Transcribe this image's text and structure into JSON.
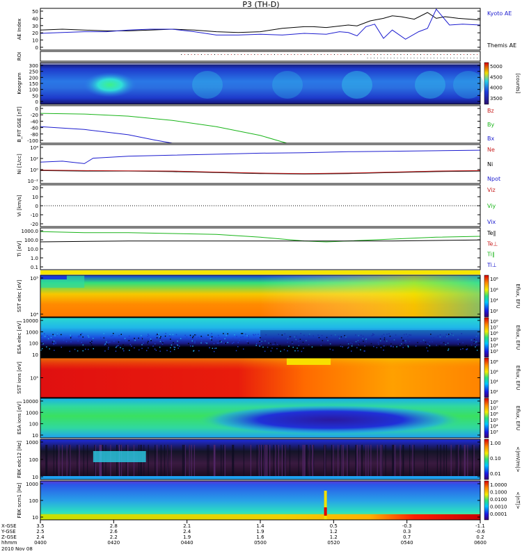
{
  "title": "P3 (TH-D)",
  "footer": {
    "date": "2010 Nov 08"
  },
  "chart_data": [
    {
      "id": "ae",
      "type": "line",
      "ylabel": "AE Index",
      "yticks": [
        "50",
        "40",
        "30",
        "20",
        "10",
        "0"
      ],
      "legend": [
        {
          "name": "Kyoto AE",
          "color": "#1b1bcf"
        },
        {
          "name": "Themis AE",
          "color": "#000000"
        }
      ],
      "series": [
        {
          "name": "Themis AE",
          "color": "#000000",
          "x": [
            0,
            0.05,
            0.1,
            0.15,
            0.2,
            0.25,
            0.3,
            0.35,
            0.4,
            0.45,
            0.5,
            0.55,
            0.6,
            0.62,
            0.65,
            0.7,
            0.72,
            0.75,
            0.78,
            0.8,
            0.82,
            0.85,
            0.88,
            0.9,
            0.92,
            0.95,
            1
          ],
          "y": [
            24,
            25,
            24,
            23,
            23,
            24,
            25,
            24,
            22,
            21,
            22,
            26,
            28,
            28,
            27,
            30,
            29,
            35,
            38,
            41,
            40,
            37,
            45,
            38,
            40,
            38,
            36
          ]
        },
        {
          "name": "Kyoto AE",
          "color": "#1b1bcf",
          "x": [
            0,
            0.05,
            0.1,
            0.15,
            0.2,
            0.25,
            0.3,
            0.35,
            0.4,
            0.45,
            0.5,
            0.55,
            0.6,
            0.65,
            0.68,
            0.7,
            0.72,
            0.74,
            0.76,
            0.78,
            0.8,
            0.83,
            0.86,
            0.88,
            0.9,
            0.93,
            0.96,
            1
          ],
          "y": [
            20,
            21,
            22,
            22,
            24,
            25,
            25,
            22,
            18,
            18,
            19,
            18,
            20,
            19,
            22,
            21,
            17,
            28,
            31,
            14,
            24,
            13,
            22,
            26,
            49,
            30,
            31,
            30
          ]
        }
      ]
    },
    {
      "id": "roi",
      "type": "table",
      "ylabel": "ROI"
    },
    {
      "id": "keogram",
      "type": "heatmap",
      "ylabel": "Keogram",
      "yticks": [
        "300",
        "250",
        "200",
        "150",
        "100",
        "50",
        "0"
      ],
      "colorbar": {
        "label": "[counts]",
        "ticks": [
          "5000",
          "4500",
          "4000",
          "3500"
        ]
      }
    },
    {
      "id": "bfield",
      "type": "line",
      "ylabel": "B_FIT GSE [nT]",
      "yticks": [
        "0",
        "-20",
        "-40",
        "-60",
        "-80",
        "-100"
      ],
      "legend": [
        {
          "name": "Bz",
          "color": "#c81e1e"
        },
        {
          "name": "By",
          "color": "#18b418"
        },
        {
          "name": "Bx",
          "color": "#1b1bcf"
        }
      ],
      "series": [
        {
          "name": "By",
          "color": "#18b418",
          "x": [
            0,
            0.1,
            0.2,
            0.3,
            0.4,
            0.5,
            0.56
          ],
          "y": [
            -22,
            -24,
            -30,
            -42,
            -60,
            -85,
            -107
          ]
        },
        {
          "name": "Bx",
          "color": "#1b1bcf",
          "x": [
            0,
            0.1,
            0.2,
            0.26,
            0.3
          ],
          "y": [
            -60,
            -68,
            -83,
            -98,
            -107
          ]
        }
      ]
    },
    {
      "id": "density",
      "type": "line",
      "ylabel": "Ni [1/cc]",
      "yticks": [
        "10⁴",
        "10²",
        "10⁰",
        "10⁻²"
      ],
      "legend": [
        {
          "name": "Ne",
          "color": "#c81e1e"
        },
        {
          "name": "Ni",
          "color": "#000000"
        },
        {
          "name": "Npot",
          "color": "#1b1bcf"
        }
      ],
      "series": [
        {
          "name": "Npot",
          "color": "#1b1bcf",
          "x": [
            0,
            0.05,
            0.1,
            0.12,
            0.2,
            0.3,
            0.4,
            0.5,
            0.6,
            0.7,
            0.8,
            0.9,
            1
          ],
          "y": [
            1.8,
            2.0,
            1.5,
            2.6,
            3.0,
            3.2,
            3.4,
            3.6,
            3.7,
            3.9,
            4.0,
            4.1,
            4.2
          ]
        },
        {
          "name": "Ni",
          "color": "#000000",
          "x": [
            0,
            0.1,
            0.2,
            0.3,
            0.4,
            0.5,
            0.6,
            0.7,
            0.8,
            0.9,
            1
          ],
          "y": [
            0.1,
            0.0,
            0.0,
            -0.1,
            -0.3,
            -0.5,
            -0.6,
            -0.5,
            -0.3,
            -0.1,
            0.0
          ]
        },
        {
          "name": "Ne",
          "color": "#c81e1e",
          "x": [
            0,
            0.1,
            0.2,
            0.3,
            0.4,
            0.5,
            0.6,
            0.7,
            0.8,
            0.9,
            1
          ],
          "y": [
            0.2,
            0.1,
            0.05,
            0.0,
            -0.2,
            -0.4,
            -0.5,
            -0.4,
            -0.2,
            0.0,
            0.1
          ]
        }
      ]
    },
    {
      "id": "velocity",
      "type": "line",
      "ylabel": "Vi [km/s]",
      "yticks": [
        "20",
        "10",
        "0",
        "-10",
        "-20"
      ],
      "legend": [
        {
          "name": "Viz",
          "color": "#c81e1e"
        },
        {
          "name": "Viy",
          "color": "#18b418"
        },
        {
          "name": "Vix",
          "color": "#1b1bcf"
        }
      ]
    },
    {
      "id": "temperature",
      "type": "line",
      "ylabel": "Ti [eV]",
      "yticks": [
        "1000.0",
        "100.0",
        "10.0",
        "1.0",
        "0.1"
      ],
      "legend": [
        {
          "name": "Te∥",
          "color": "#000000"
        },
        {
          "name": "Te⊥",
          "color": "#c81e1e"
        },
        {
          "name": "Ti∥",
          "color": "#18b418"
        },
        {
          "name": "Ti⊥",
          "color": "#1b1bcf"
        }
      ],
      "series": [
        {
          "name": "Ti∥",
          "color": "#18b418",
          "x": [
            0,
            0.1,
            0.2,
            0.3,
            0.4,
            0.5,
            0.55,
            0.6,
            0.65,
            0.7,
            0.8,
            0.9,
            1
          ],
          "y": [
            3.1,
            3.0,
            3.0,
            2.9,
            2.8,
            2.5,
            2.3,
            2.1,
            2.0,
            2.1,
            2.3,
            2.5,
            2.6
          ]
        },
        {
          "name": "Te∥",
          "color": "#000000",
          "x": [
            0,
            0.2,
            0.4,
            0.6,
            0.8,
            1
          ],
          "y": [
            2.0,
            2.1,
            2.1,
            2.1,
            2.1,
            2.2
          ]
        }
      ]
    },
    {
      "id": "sst_e",
      "type": "heatmap",
      "ylabel": "SST elec [eV]",
      "yticks": [
        "10⁵",
        "10⁴"
      ],
      "colorbar": {
        "label": "Eflux, EFU",
        "ticks": [
          "10⁸",
          "10⁶",
          "10⁴",
          "10²"
        ]
      }
    },
    {
      "id": "esa_e",
      "type": "heatmap",
      "ylabel": "ESA elec [eV]",
      "yticks": [
        "10000",
        "1000",
        "100",
        "10"
      ],
      "colorbar": {
        "label": "Eflux, EFU",
        "ticks": [
          "10⁸",
          "10⁷",
          "10⁶",
          "10⁵",
          "10⁴",
          "10³"
        ]
      }
    },
    {
      "id": "sst_i",
      "type": "heatmap",
      "ylabel": "SST ions [eV]",
      "yticks": [
        "10⁵"
      ],
      "colorbar": {
        "label": "Eflux, EFU",
        "ticks": [
          "10⁸",
          "10⁶",
          "10⁴",
          "10²"
        ]
      }
    },
    {
      "id": "esa_i",
      "type": "heatmap",
      "ylabel": "ESA ions [eV]",
      "yticks": [
        "10000",
        "1000",
        "100",
        "10"
      ],
      "colorbar": {
        "label": "Eflux, EFU",
        "ticks": [
          "10⁸",
          "10⁷",
          "10⁶",
          "10⁵",
          "10⁴",
          "10³"
        ]
      }
    },
    {
      "id": "fbk_e",
      "type": "heatmap",
      "ylabel": "FBK edc12 [Hz]",
      "yticks": [
        "1000",
        "100",
        "10"
      ],
      "colorbar": {
        "label": "<|mV/m|>",
        "ticks": [
          "1.00",
          "0.10",
          "0.01"
        ]
      }
    },
    {
      "id": "fbk_b",
      "type": "heatmap",
      "ylabel": "FBK scm1 [Hz]",
      "yticks": [
        "1000",
        "100",
        "10"
      ],
      "colorbar": {
        "label": "<|nT|>",
        "ticks": [
          "1.0000",
          "0.1000",
          "0.0100",
          "0.0010",
          "0.0001"
        ]
      }
    }
  ],
  "xaxis": {
    "row_labels": [
      "X-GSE",
      "Y-GSE",
      "Z-GSE",
      "hhmm"
    ],
    "ticks": [
      {
        "x": "3.5",
        "y": "2.5",
        "z": "2.4",
        "t": "0400"
      },
      {
        "x": "2.8",
        "y": "2.6",
        "z": "2.2",
        "t": "0420"
      },
      {
        "x": "2.1",
        "y": "2.4",
        "z": "1.9",
        "t": "0440"
      },
      {
        "x": "1.4",
        "y": "1.9",
        "z": "1.6",
        "t": "0500"
      },
      {
        "x": "0.5",
        "y": "1.2",
        "z": "1.2",
        "t": "0520"
      },
      {
        "x": "-0.3",
        "y": "0.3",
        "z": "0.7",
        "t": "0540"
      },
      {
        "x": "-1.1",
        "y": "-0.6",
        "z": "0.2",
        "t": "0600"
      }
    ]
  }
}
